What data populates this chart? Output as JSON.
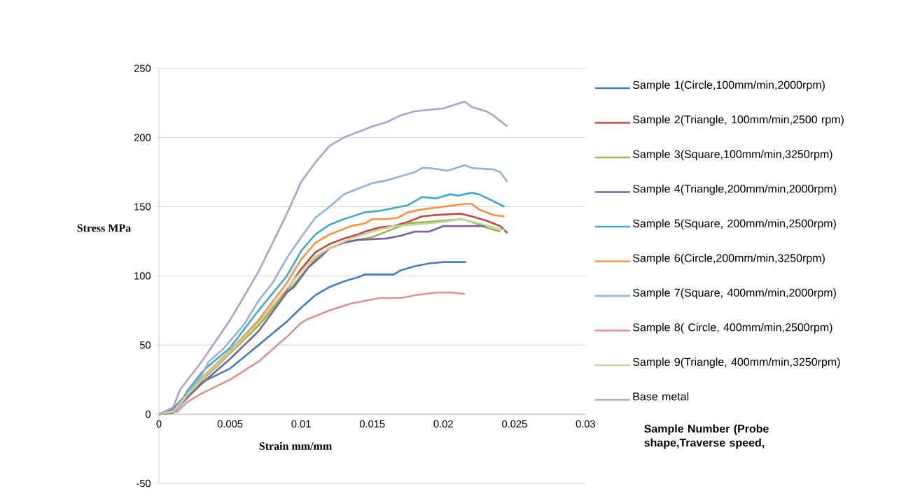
{
  "chart_data": {
    "type": "line",
    "xlabel": "Strain mm/mm",
    "ylabel": "Stress MPa",
    "xlim": [
      0,
      0.03
    ],
    "xticks": [
      0,
      0.005,
      0.01,
      0.015,
      0.02,
      0.025,
      0.03
    ],
    "ylim": [
      -50,
      250
    ],
    "yticks": [
      -50,
      0,
      50,
      100,
      150,
      200,
      250
    ],
    "grid": "y",
    "legend": "right",
    "marker": "none",
    "line_style": "solid",
    "annotations": [
      "Sample Number (Probe shape,Traverse speed,"
    ],
    "series": [
      {
        "name": "Sample 1(Circle,100mm/min,2000rpm)",
        "color": "#4a7ebb",
        "x": [
          0,
          0.001,
          0.002,
          0.003,
          0.005,
          0.007,
          0.009,
          0.01,
          0.011,
          0.012,
          0.013,
          0.014,
          0.0145,
          0.0165,
          0.017,
          0.018,
          0.019,
          0.02,
          0.0216
        ],
        "values": [
          0,
          4,
          15,
          23,
          33,
          50,
          67,
          77,
          86,
          92,
          96,
          99,
          101,
          101,
          104,
          107,
          109,
          110,
          110
        ]
      },
      {
        "name": "Sample 2(Triangle, 100mm/min,2500 rpm)",
        "color": "#be4b48",
        "x": [
          0,
          0.001,
          0.002,
          0.003,
          0.005,
          0.007,
          0.009,
          0.01,
          0.011,
          0.012,
          0.013,
          0.014,
          0.0145,
          0.0155,
          0.0165,
          0.0175,
          0.0185,
          0.0195,
          0.0212,
          0.022,
          0.023,
          0.024,
          0.0245
        ],
        "values": [
          0,
          2,
          14,
          25,
          45,
          66,
          90,
          105,
          117,
          123,
          127,
          130,
          132,
          135,
          136,
          139,
          143,
          144,
          145,
          143,
          140,
          136,
          131
        ]
      },
      {
        "name": "Sample 3(Square,100mm/min,3250rpm)",
        "color": "#98b954",
        "x": [
          0,
          0.001,
          0.002,
          0.003,
          0.005,
          0.007,
          0.009,
          0.01,
          0.011,
          0.012,
          0.013,
          0.015,
          0.0165,
          0.0175,
          0.019,
          0.0213,
          0.022,
          0.023,
          0.024
        ],
        "values": [
          0,
          1,
          13,
          24,
          44,
          64,
          88,
          100,
          112,
          120,
          124,
          128,
          134,
          138,
          139,
          141,
          139,
          135,
          132
        ]
      },
      {
        "name": "Sample 4(Triangle,200mm/min,2000rpm)",
        "color": "#7d60a0",
        "x": [
          0,
          0.001,
          0.002,
          0.003,
          0.005,
          0.007,
          0.009,
          0.0095,
          0.0105,
          0.0115,
          0.012,
          0.013,
          0.014,
          0.016,
          0.017,
          0.018,
          0.019,
          0.02,
          0.0215,
          0.023
        ],
        "values": [
          0,
          1,
          12,
          22,
          40,
          60,
          88,
          92,
          106,
          115,
          120,
          124,
          126,
          127,
          129,
          132,
          132,
          136,
          136,
          136
        ]
      },
      {
        "name": "Sample 5(Square, 200mm/min,2500rpm)",
        "color": "#46aac5",
        "x": [
          0,
          0.001,
          0.0015,
          0.002,
          0.003,
          0.0035,
          0.005,
          0.007,
          0.009,
          0.01,
          0.011,
          0.012,
          0.013,
          0.0145,
          0.0155,
          0.017,
          0.0175,
          0.0185,
          0.0195,
          0.0205,
          0.021,
          0.022,
          0.0225,
          0.0235,
          0.0243
        ],
        "values": [
          0,
          2,
          8,
          17,
          30,
          35,
          48,
          75,
          100,
          118,
          130,
          137,
          141,
          146,
          147,
          150,
          151,
          157,
          156,
          159,
          158,
          160,
          159,
          154,
          150
        ]
      },
      {
        "name": "Sample 6(Circle,200mm/min,3250rpm)",
        "color": "#f69545",
        "x": [
          0,
          0.001,
          0.002,
          0.003,
          0.005,
          0.007,
          0.009,
          0.01,
          0.011,
          0.012,
          0.0135,
          0.0145,
          0.015,
          0.016,
          0.0168,
          0.0175,
          0.0185,
          0.02,
          0.0215,
          0.022,
          0.0225,
          0.0235,
          0.0243
        ],
        "values": [
          0,
          2,
          15,
          26,
          46,
          68,
          95,
          112,
          124,
          130,
          136,
          138,
          141,
          141,
          142,
          146,
          148,
          150,
          152,
          152,
          148,
          144,
          143
        ]
      },
      {
        "name": "Sample 7(Square, 400mm/min,2000rpm)",
        "color": "#95b3d7",
        "x": [
          0,
          0.001,
          0.0015,
          0.002,
          0.003,
          0.0035,
          0.0045,
          0.006,
          0.007,
          0.008,
          0.009,
          0.01,
          0.011,
          0.012,
          0.013,
          0.014,
          0.015,
          0.016,
          0.017,
          0.018,
          0.0185,
          0.019,
          0.0203,
          0.0215,
          0.022,
          0.0235,
          0.024,
          0.0245
        ],
        "values": [
          0,
          2,
          6,
          15,
          28,
          38,
          47,
          65,
          82,
          95,
          113,
          128,
          142,
          150,
          159,
          163,
          167,
          169,
          172,
          175,
          178,
          178,
          176,
          180,
          178,
          177,
          175,
          168
        ]
      },
      {
        "name": "Sample 8( Circle, 400mm/min,2500rpm)",
        "color": "#d99694",
        "x": [
          0,
          0.0013,
          0.002,
          0.003,
          0.005,
          0.007,
          0.009,
          0.01,
          0.0105,
          0.012,
          0.0135,
          0.015,
          0.0155,
          0.017,
          0.018,
          0.0195,
          0.0205,
          0.0215
        ],
        "values": [
          0,
          2,
          9,
          15,
          25,
          38,
          56,
          66,
          69,
          75,
          80,
          83,
          84,
          84,
          86,
          88,
          88,
          87
        ]
      },
      {
        "name": "Sample 9(Triangle, 400mm/min,3250rpm)",
        "color": "#c3d69b",
        "x": [
          0,
          0.001,
          0.002,
          0.003,
          0.005,
          0.007,
          0.009,
          0.01,
          0.011,
          0.012,
          0.0135,
          0.015,
          0.0165,
          0.018,
          0.02,
          0.0213,
          0.0225,
          0.0243
        ],
        "values": [
          0,
          2,
          14,
          25,
          45,
          66,
          91,
          103,
          114,
          120,
          127,
          132,
          136,
          137,
          139,
          141,
          138,
          133
        ]
      },
      {
        "name": "Base metal",
        "color": "#b3a2c7",
        "x": [
          0,
          0.001,
          0.0015,
          0.003,
          0.005,
          0.007,
          0.009,
          0.01,
          0.011,
          0.012,
          0.013,
          0.014,
          0.015,
          0.016,
          0.017,
          0.018,
          0.02,
          0.0215,
          0.022,
          0.023,
          0.0235,
          0.0245
        ],
        "values": [
          0,
          5,
          18,
          38,
          68,
          103,
          145,
          168,
          182,
          194,
          200,
          204,
          208,
          211,
          216,
          219,
          221,
          226,
          222,
          219,
          216,
          208
        ]
      }
    ]
  }
}
